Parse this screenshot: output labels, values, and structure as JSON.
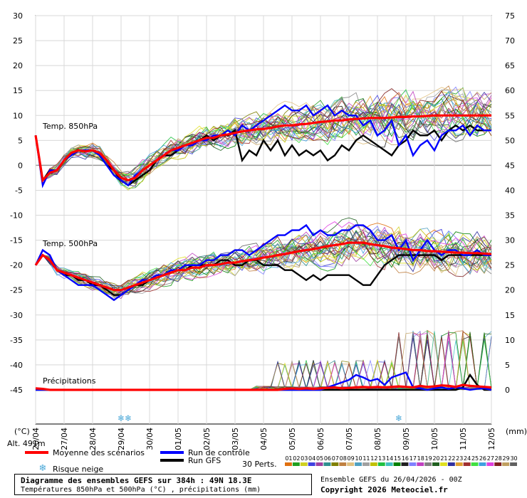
{
  "chart_data": {
    "type": "line",
    "title": "Diagramme des ensembles GEFS sur 384h : 49N 18.3E",
    "subtitle": "Températures 850hPa et 500hPa (°C) , précipitations (mm)",
    "run_info": "Ensemble GEFS du 26/04/2026 - 00Z",
    "copyright": "Copyright 2026 Meteociel.fr",
    "left_axis": {
      "label": "(°C)",
      "ticks": [
        30,
        25,
        20,
        15,
        10,
        5,
        0,
        -5,
        -10,
        -15,
        -20,
        -25,
        -30,
        -35,
        -40,
        -45
      ],
      "range": [
        -45,
        30
      ]
    },
    "right_axis": {
      "label": "(mm)",
      "ticks": [
        75,
        70,
        65,
        60,
        55,
        50,
        45,
        40,
        35,
        30,
        25,
        20,
        15,
        10,
        5,
        0
      ],
      "range": [
        0,
        75
      ]
    },
    "x_axis": {
      "labels": [
        "26/04",
        "27/04",
        "28/04",
        "29/04",
        "30/04",
        "01/05",
        "02/05",
        "03/05",
        "04/05",
        "05/05",
        "06/05",
        "07/05",
        "08/05",
        "09/05",
        "10/05",
        "11/05",
        "12/05"
      ],
      "range_hours": [
        0,
        384
      ]
    },
    "altitude_label": "Alt. 491m",
    "sections": [
      "Temp. 850hPa",
      "Temp. 500hPa",
      "Précipitations"
    ],
    "legend": {
      "mean_label": "Moyenne des scénarios",
      "control_label": "Run de contrôle",
      "gfs_label": "Run GFS",
      "snow_label": "Risque neige",
      "perts_label": "30 Perts.",
      "mean_color": "#ff0000",
      "control_color": "#0000ff",
      "gfs_color": "#000000"
    },
    "perturbations": {
      "labels": [
        "01",
        "02",
        "03",
        "04",
        "05",
        "06",
        "07",
        "08",
        "09",
        "10",
        "11",
        "12",
        "13",
        "14",
        "15",
        "16",
        "17",
        "18",
        "19",
        "20",
        "21",
        "22",
        "23",
        "24",
        "25",
        "26",
        "27",
        "28",
        "29",
        "30"
      ],
      "colors": [
        "#e07010",
        "#20a020",
        "#d0d020",
        "#4040e0",
        "#a040a0",
        "#309090",
        "#808000",
        "#c08040",
        "#e0c080",
        "#50a0c0",
        "#a0a0a0",
        "#c0c000",
        "#20c040",
        "#40c0c0",
        "#008000",
        "#202020",
        "#8080ff",
        "#c040c0",
        "#808080",
        "#206020",
        "#e0e020",
        "#3030a0",
        "#e0a030",
        "#a03030",
        "#40e040",
        "#40a0e0",
        "#e040e0",
        "#802020",
        "#c0a060",
        "#606060"
      ]
    },
    "snow_risk_hours": [
      72,
      78,
      306
    ],
    "series": [
      {
        "name": "Moyenne des scénarios",
        "t850": [
          6,
          -3,
          -1.5,
          -1,
          1,
          2.5,
          3,
          2.8,
          3,
          2.5,
          1,
          -1,
          -2.5,
          -3,
          -2.5,
          -1,
          0,
          1,
          2,
          3,
          3.5,
          4,
          4.5,
          5,
          5.5,
          5.5,
          6,
          6.2,
          6.5,
          6.8,
          7,
          7.2,
          7.3,
          7.5,
          7.8,
          8,
          8,
          8.2,
          8.3,
          8.5,
          8.7,
          8.8,
          9,
          9,
          9.2,
          9.3,
          9.4,
          9.5,
          9.5,
          9.5,
          9.6,
          9.7,
          9.7,
          9.8,
          9.8,
          9.9,
          10,
          10,
          10,
          10,
          10,
          10,
          10,
          10,
          10
        ],
        "t500": [
          -20,
          -18,
          -19,
          -21,
          -21.5,
          -22,
          -22.5,
          -23,
          -23.5,
          -24,
          -24.5,
          -25,
          -25,
          -24.5,
          -24,
          -23.5,
          -23,
          -22.5,
          -22,
          -21.5,
          -21,
          -21,
          -20.5,
          -20.5,
          -20,
          -20,
          -19.8,
          -19.5,
          -19.5,
          -19.2,
          -19,
          -18.8,
          -18.5,
          -18.3,
          -18,
          -17.8,
          -17.5,
          -17.2,
          -17,
          -16.8,
          -16.5,
          -16.2,
          -16,
          -15.8,
          -15.5,
          -15.5,
          -15.5,
          -15.8,
          -16,
          -16.2,
          -16.5,
          -16.6,
          -16.8,
          -17,
          -17,
          -17.2,
          -17.2,
          -17.3,
          -17.4,
          -17.5,
          -17.5,
          -17.6,
          -17.6,
          -17.7,
          -17.8
        ],
        "precip": [
          0.3,
          0.2,
          0,
          0,
          0,
          0,
          0,
          0,
          0,
          0,
          0,
          0,
          0,
          0,
          0,
          0,
          0,
          0,
          0,
          0,
          0,
          0,
          0,
          0,
          0,
          0,
          0,
          0,
          0,
          0,
          0,
          0,
          0,
          0,
          0,
          0.2,
          0.3,
          0.2,
          0.3,
          0.2,
          0.3,
          0.4,
          0.5,
          0.3,
          0.4,
          0.5,
          0.6,
          0.5,
          0.6,
          0.5,
          0.6,
          0.7,
          0.6,
          0.5,
          0.8,
          0.6,
          0.7,
          0.9,
          0.8,
          0.6,
          1,
          0.8,
          0.7,
          0.6,
          0.5
        ]
      },
      {
        "name": "Run de contrôle",
        "t850": [
          6,
          -4,
          -1,
          -1,
          1,
          2,
          3,
          3,
          3,
          2,
          0,
          -2,
          -3,
          -4,
          -2,
          -1,
          0,
          1,
          2,
          3,
          3,
          4,
          4,
          5,
          5,
          6,
          6,
          7,
          6,
          8,
          7,
          8,
          9,
          10,
          11,
          12,
          11,
          11,
          12,
          10,
          11,
          12,
          10,
          11,
          10,
          10,
          8,
          9,
          6,
          7,
          9,
          4,
          6,
          2,
          4,
          5,
          3,
          6,
          7,
          7,
          8,
          6,
          8,
          7,
          7
        ],
        "t500": [
          -20,
          -17,
          -18,
          -21,
          -22,
          -23,
          -24,
          -24,
          -24,
          -25,
          -26,
          -27,
          -26,
          -25,
          -24,
          -23,
          -23,
          -22,
          -22,
          -21,
          -21,
          -20,
          -20,
          -20,
          -19,
          -19,
          -18,
          -18,
          -17,
          -17,
          -18,
          -17,
          -16,
          -15,
          -14,
          -14,
          -13,
          -13,
          -12,
          -14,
          -13,
          -14,
          -14,
          -13,
          -13,
          -12,
          -12,
          -13,
          -15,
          -15,
          -14,
          -17,
          -15,
          -19,
          -17,
          -15,
          -17,
          -18,
          -17,
          -17,
          -18,
          -18,
          -17,
          -18,
          -18
        ],
        "precip": [
          0,
          0,
          0,
          0,
          0,
          0,
          0,
          0,
          0,
          0,
          0,
          0,
          0,
          0,
          0,
          0,
          0,
          0,
          0,
          0,
          0,
          0,
          0,
          0,
          0,
          0,
          0,
          0,
          0,
          0,
          0,
          0,
          0,
          0,
          0,
          0,
          0,
          0,
          0,
          0,
          0,
          0.5,
          1,
          1.5,
          2,
          3,
          2.5,
          1.8,
          2.2,
          1,
          2.5,
          3,
          3.5,
          0.5,
          0.3,
          0,
          0.3,
          0.5,
          0.2,
          0.5,
          0.3,
          0,
          0.2,
          0.3,
          0
        ]
      },
      {
        "name": "Run GFS",
        "t850": [
          6,
          -3,
          -1,
          -1,
          1,
          2,
          3,
          3,
          3,
          2,
          0,
          -1,
          -3,
          -4,
          -3,
          -2,
          -1,
          1,
          2,
          2,
          3,
          4,
          4,
          5,
          6,
          5,
          6,
          6,
          7,
          1,
          3,
          2,
          5,
          3,
          5,
          2,
          4,
          2,
          3,
          2,
          3,
          1,
          2,
          4,
          3,
          5,
          6,
          5,
          4,
          3,
          2,
          4,
          5,
          7,
          6,
          6,
          7,
          5,
          7,
          8,
          7,
          8,
          7,
          7,
          7
        ],
        "t500": [
          -20,
          -18,
          -19,
          -21,
          -22,
          -22,
          -23,
          -23,
          -24,
          -24,
          -25,
          -26,
          -26,
          -25,
          -24,
          -24,
          -23,
          -22,
          -22,
          -21,
          -21,
          -21,
          -20,
          -20,
          -20,
          -20,
          -19,
          -19,
          -20,
          -20,
          -19,
          -19,
          -20,
          -20,
          -20,
          -21,
          -21,
          -22,
          -23,
          -22,
          -23,
          -22,
          -22,
          -22,
          -22,
          -23,
          -24,
          -24,
          -22,
          -20,
          -19,
          -18,
          -18,
          -18,
          -18,
          -18,
          -18,
          -19,
          -18,
          -18,
          -18,
          -18,
          -18,
          -18,
          -18
        ],
        "precip": [
          0,
          0,
          0,
          0,
          0,
          0,
          0,
          0,
          0,
          0,
          0,
          0,
          0,
          0,
          0,
          0,
          0,
          0,
          0,
          0,
          0,
          0,
          0,
          0,
          0,
          0,
          0,
          0,
          0,
          0,
          0,
          0,
          0,
          0,
          0,
          0,
          0,
          0,
          0,
          0,
          0,
          0,
          0,
          0,
          0,
          0,
          0,
          0,
          0,
          0,
          0,
          0,
          0,
          0,
          0,
          0,
          0,
          0,
          0,
          0,
          0.5,
          3,
          1,
          0,
          0
        ]
      }
    ]
  }
}
